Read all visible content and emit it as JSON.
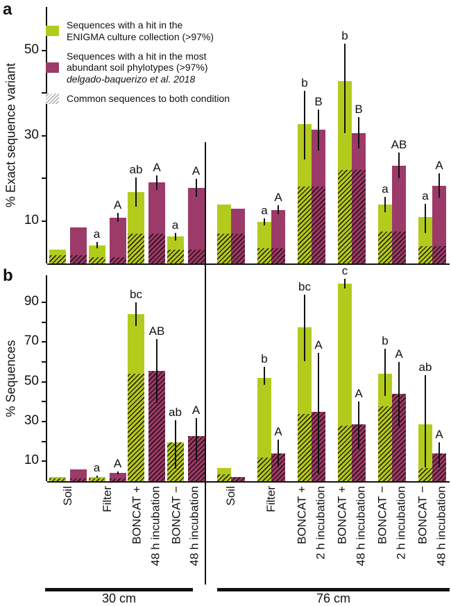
{
  "chart_data": {
    "type": "bar",
    "colors": {
      "green": "#b3cb1d",
      "purple": "#9c3a69",
      "axis": "#111111"
    },
    "legend": {
      "enigma": [
        "Sequences with a hit in the",
        "ENIGMA culture collection (>97%)"
      ],
      "phylotypes": [
        "Sequences with a hit in the most",
        "abundant soil phylotypes (>97%)",
        "delgado-baquerizo et al. 2018"
      ],
      "common": "Common sequences to both condition"
    },
    "x_groups": [
      {
        "label": "30 cm",
        "categories": [
          [
            "Soil"
          ],
          [
            "Filter"
          ],
          [
            "BONCAT +",
            "48 h incubation"
          ],
          [
            "BONCAT −",
            "48 h incubation"
          ]
        ]
      },
      {
        "label": "76 cm",
        "categories": [
          [
            "Soil"
          ],
          [
            "Filter"
          ],
          [
            "BONCAT +",
            "2 h incubation"
          ],
          [
            "BONCAT +",
            "48 h incubation"
          ],
          [
            "BONCAT −",
            "2 h incubation"
          ],
          [
            "BONCAT −",
            "48 h incubation"
          ]
        ]
      }
    ],
    "panels": [
      {
        "panel_letter": "a",
        "ylabel": "% Exact sequence variant",
        "ylim": [
          0,
          60
        ],
        "yticks": [
          {
            "v": 10,
            "label": "10"
          },
          {
            "v": 20,
            "label": ""
          },
          {
            "v": 30,
            "label": "30"
          },
          {
            "v": 40,
            "label": ""
          },
          {
            "v": 50,
            "label": "50"
          }
        ],
        "groups": [
          [
            {
              "green": {
                "value": 3.2,
                "common": 2.0
              },
              "purple": {
                "value": 8.5,
                "common": 2.0
              }
            },
            {
              "green": {
                "value": 4.3,
                "err_lo": 3.5,
                "err_hi": 5.1,
                "letter": "a",
                "common": 1.5
              },
              "purple": {
                "value": 10.8,
                "err_lo": 9.7,
                "err_hi": 11.9,
                "letter": "A",
                "common": 1.5
              }
            },
            {
              "green": {
                "value": 16.8,
                "err_lo": 13.4,
                "err_hi": 20.2,
                "letter": "ab",
                "common": 7.0
              },
              "purple": {
                "value": 19.0,
                "err_lo": 17.3,
                "err_hi": 20.7,
                "letter": "A",
                "common": 7.0
              }
            },
            {
              "green": {
                "value": 6.3,
                "err_lo": 5.4,
                "err_hi": 7.2,
                "letter": "a",
                "common": 3.2
              },
              "purple": {
                "value": 17.8,
                "err_lo": 15.7,
                "err_hi": 19.9,
                "letter": "A",
                "common": 3.2
              }
            }
          ],
          [
            {
              "green": {
                "value": 13.8,
                "common": 7.0
              },
              "purple": {
                "value": 12.8,
                "common": 7.0
              }
            },
            {
              "green": {
                "value": 9.8,
                "err_lo": 9.0,
                "err_hi": 10.6,
                "letter": "a",
                "common": 3.6
              },
              "purple": {
                "value": 12.6,
                "err_lo": 11.6,
                "err_hi": 13.6,
                "letter": "A",
                "common": 3.6
              }
            },
            {
              "green": {
                "value": 32.8,
                "err_lo": 24.5,
                "err_hi": 40.5,
                "letter": "b",
                "common": 18.0
              },
              "purple": {
                "value": 31.5,
                "err_lo": 26.5,
                "err_hi": 36.2,
                "letter": "B",
                "common": 18.0
              }
            },
            {
              "green": {
                "value": 42.9,
                "err_lo": 30.6,
                "err_hi": 51.6,
                "letter": "b",
                "common": 22.0
              },
              "purple": {
                "value": 30.7,
                "err_lo": 27.0,
                "err_hi": 34.4,
                "letter": "B",
                "common": 22.0
              }
            },
            {
              "green": {
                "value": 13.8,
                "err_lo": 12.0,
                "err_hi": 15.6,
                "letter": "a",
                "common": 7.5
              },
              "purple": {
                "value": 23.0,
                "err_lo": 20.0,
                "err_hi": 26.0,
                "letter": "AB",
                "common": 7.5
              }
            },
            {
              "green": {
                "value": 10.9,
                "err_lo": 7.2,
                "err_hi": 14.0,
                "letter": "a",
                "common": 4.0
              },
              "purple": {
                "value": 18.3,
                "err_lo": 15.4,
                "err_hi": 21.2,
                "letter": "A",
                "common": 4.0
              }
            }
          ]
        ]
      },
      {
        "panel_letter": "b",
        "ylabel": "% Sequences",
        "ylim": [
          0,
          103
        ],
        "yticks": [
          {
            "v": 10,
            "label": "10"
          },
          {
            "v": 20,
            "label": ""
          },
          {
            "v": 30,
            "label": "30"
          },
          {
            "v": 40,
            "label": ""
          },
          {
            "v": 50,
            "label": "50"
          },
          {
            "v": 60,
            "label": ""
          },
          {
            "v": 70,
            "label": "70"
          },
          {
            "v": 80,
            "label": ""
          },
          {
            "v": 90,
            "label": "90"
          }
        ],
        "groups": [
          [
            {
              "green": {
                "value": 2.0,
                "common": 1.5
              },
              "purple": {
                "value": 6.0,
                "common": 1.5
              }
            },
            {
              "green": {
                "value": 2.2,
                "err_lo": 1.6,
                "err_hi": 2.8,
                "letter": "a",
                "common": 1.3
              },
              "purple": {
                "value": 4.2,
                "err_lo": 3.4,
                "err_hi": 5.0,
                "letter": "A",
                "common": 1.3
              }
            },
            {
              "green": {
                "value": 84.0,
                "err_lo": 78.0,
                "err_hi": 90.0,
                "letter": "bc",
                "common": 54.0
              },
              "purple": {
                "value": 55.5,
                "err_lo": 39.5,
                "err_hi": 71.5,
                "letter": "AB",
                "common": 55.5
              }
            },
            {
              "green": {
                "value": 19.5,
                "err_lo": 6.2,
                "err_hi": 30.8,
                "letter": "ab",
                "common": 19.5
              },
              "purple": {
                "value": 22.8,
                "err_lo": 10.5,
                "err_hi": 31.8,
                "letter": "A",
                "common": 22.8
              }
            }
          ],
          [
            {
              "green": {
                "value": 6.5,
                "common": 3.5
              },
              "purple": {
                "value": 2.0,
                "common": 2.0
              }
            },
            {
              "green": {
                "value": 52.0,
                "err_lo": 48.5,
                "err_hi": 57.5,
                "letter": "b",
                "common": 12.0
              },
              "purple": {
                "value": 13.8,
                "err_lo": 7.2,
                "err_hi": 21.0,
                "letter": "A",
                "common": 13.8
              }
            },
            {
              "green": {
                "value": 77.5,
                "err_lo": 60.5,
                "err_hi": 94.0,
                "letter": "bc",
                "common": 34.0
              },
              "purple": {
                "value": 35.0,
                "err_lo": 4.0,
                "err_hi": 64.5,
                "letter": "A",
                "common": 35.0
              }
            },
            {
              "green": {
                "value": 99.5,
                "err_lo": 97.0,
                "err_hi": 102.0,
                "letter": "c",
                "common": 28.0
              },
              "purple": {
                "value": 28.5,
                "err_lo": 16.0,
                "err_hi": 40.0,
                "letter": "A",
                "common": 28.5
              }
            },
            {
              "green": {
                "value": 54.0,
                "err_lo": 43.0,
                "err_hi": 66.5,
                "letter": "b",
                "common": 37.5
              },
              "purple": {
                "value": 44.0,
                "err_lo": 27.5,
                "err_hi": 60.0,
                "letter": "A",
                "common": 44.0
              }
            },
            {
              "green": {
                "value": 28.5,
                "err_lo": 7.0,
                "err_hi": 53.5,
                "letter": "ab",
                "common": 6.5
              },
              "purple": {
                "value": 13.8,
                "err_lo": 7.0,
                "err_hi": 19.5,
                "letter": "A",
                "common": 13.8
              }
            }
          ]
        ]
      }
    ]
  }
}
